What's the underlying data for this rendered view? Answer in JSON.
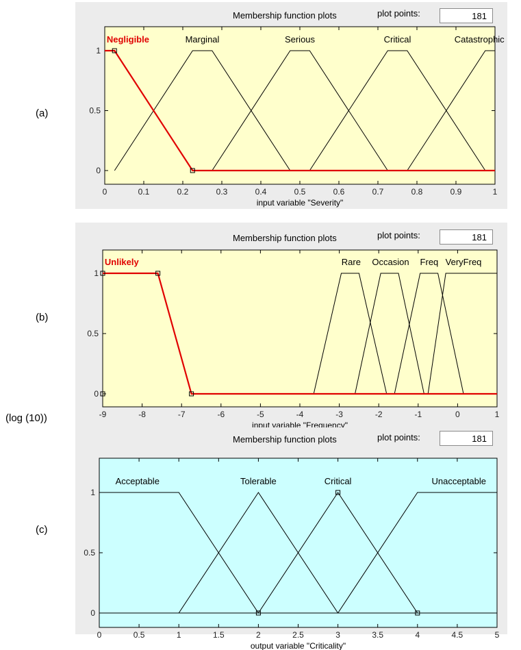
{
  "row_labels": {
    "a": "(a)",
    "b": "(b)",
    "c": "(c)",
    "log_note": "(log (10))"
  },
  "panel_header": {
    "title": "Membership function plots",
    "plot_points_label": "plot points:"
  },
  "colors": {
    "input_bg": "#ffffcc",
    "output_bg": "#ccffff",
    "selected": "#e00000",
    "line": "#000000"
  },
  "chart_data": [
    {
      "type": "line",
      "kind": "fuzzy-membership",
      "plot_points": "181",
      "xlabel": "input variable \"Severity\"",
      "xlim": [
        0,
        1
      ],
      "ylim": [
        0,
        1
      ],
      "xticks": [
        0,
        0.1,
        0.2,
        0.3,
        0.4,
        0.5,
        0.6,
        0.7,
        0.8,
        0.9,
        1
      ],
      "xtick_labels": [
        "0",
        "0.1",
        "0.2",
        "0.3",
        "0.4",
        "0.5",
        "0.6",
        "0.7",
        "0.8",
        "0.9",
        "1"
      ],
      "yticks": [
        0,
        0.5,
        1
      ],
      "ytick_labels": [
        "0",
        "0.5",
        "1"
      ],
      "background": "#ffffcc",
      "series": [
        {
          "name": "Negligible",
          "selected": true,
          "points": [
            [
              0,
              1
            ],
            [
              0.025,
              1
            ],
            [
              0.225,
              0
            ],
            [
              1,
              0
            ]
          ]
        },
        {
          "name": "Marginal",
          "points": [
            [
              0.025,
              0
            ],
            [
              0.225,
              1
            ],
            [
              0.275,
              1
            ],
            [
              0.475,
              0
            ]
          ]
        },
        {
          "name": "Serious",
          "points": [
            [
              0.275,
              0
            ],
            [
              0.475,
              1
            ],
            [
              0.525,
              1
            ],
            [
              0.725,
              0
            ]
          ]
        },
        {
          "name": "Critical",
          "points": [
            [
              0.525,
              0
            ],
            [
              0.725,
              1
            ],
            [
              0.775,
              1
            ],
            [
              0.975,
              0
            ]
          ]
        },
        {
          "name": "Catastrophic",
          "points": [
            [
              0.775,
              0
            ],
            [
              0.975,
              1
            ],
            [
              1,
              1
            ]
          ]
        }
      ],
      "labels": [
        {
          "text": "Negligible",
          "x": 0.005,
          "selected": true
        },
        {
          "text": "Marginal",
          "x": 0.25
        },
        {
          "text": "Serious",
          "x": 0.5
        },
        {
          "text": "Critical",
          "x": 0.75
        },
        {
          "text": "Catastrophic",
          "x": 0.96
        }
      ],
      "markers": [
        [
          0.025,
          1
        ],
        [
          0.225,
          0
        ]
      ]
    },
    {
      "type": "line",
      "kind": "fuzzy-membership",
      "plot_points": "181",
      "xlabel": "input variable \"Frequency\"",
      "xlim": [
        -9,
        1
      ],
      "ylim": [
        0,
        1
      ],
      "xticks": [
        -9,
        -8,
        -7,
        -6,
        -5,
        -4,
        -3,
        -2,
        -1,
        0,
        1
      ],
      "xtick_labels": [
        "-9",
        "-8",
        "-7",
        "-6",
        "-5",
        "-4",
        "-3",
        "-2",
        "-1",
        "0",
        "1"
      ],
      "yticks": [
        0,
        0.5,
        1
      ],
      "ytick_labels": [
        "0",
        "0.5",
        "1"
      ],
      "background": "#ffffcc",
      "series": [
        {
          "name": "Unlikely",
          "selected": true,
          "points": [
            [
              -9,
              1
            ],
            [
              -7.6,
              1
            ],
            [
              -6.75,
              0
            ],
            [
              1,
              0
            ]
          ]
        },
        {
          "name": "Rare",
          "points": [
            [
              -3.65,
              0
            ],
            [
              -2.95,
              1
            ],
            [
              -2.5,
              1
            ],
            [
              -1.8,
              0
            ]
          ]
        },
        {
          "name": "Occasion",
          "points": [
            [
              -2.6,
              0
            ],
            [
              -1.95,
              1
            ],
            [
              -1.5,
              1
            ],
            [
              -0.85,
              0
            ]
          ]
        },
        {
          "name": "Freq",
          "points": [
            [
              -1.6,
              0
            ],
            [
              -0.95,
              1
            ],
            [
              -0.5,
              1
            ],
            [
              0.15,
              0
            ]
          ]
        },
        {
          "name": "VeryFreq",
          "points": [
            [
              -0.75,
              0
            ],
            [
              -0.3,
              1
            ],
            [
              1,
              1
            ]
          ]
        }
      ],
      "labels": [
        {
          "text": "Unlikely",
          "x": -8.95,
          "selected": true
        },
        {
          "text": "Rare",
          "x": -2.7
        },
        {
          "text": "Occasion",
          "x": -1.7
        },
        {
          "text": "Freq",
          "x": -0.72
        },
        {
          "text": "VeryFreq",
          "x": 0.15
        }
      ],
      "markers": [
        [
          -9,
          1
        ],
        [
          -7.6,
          1
        ],
        [
          -6.75,
          0
        ],
        [
          -9,
          0
        ]
      ]
    },
    {
      "type": "line",
      "kind": "fuzzy-membership",
      "plot_points": "181",
      "xlabel": "output variable \"Criticality\"",
      "xlim": [
        0,
        5
      ],
      "ylim": [
        0,
        1
      ],
      "xticks": [
        0,
        0.5,
        1,
        1.5,
        2,
        2.5,
        3,
        3.5,
        4,
        4.5,
        5
      ],
      "xtick_labels": [
        "0",
        "0.5",
        "1",
        "1.5",
        "2",
        "2.5",
        "3",
        "3.5",
        "4",
        "4.5",
        "5"
      ],
      "yticks": [
        0,
        0.5,
        1
      ],
      "ytick_labels": [
        "0",
        "0.5",
        "1"
      ],
      "background": "#ccffff",
      "series": [
        {
          "name": "Acceptable",
          "points": [
            [
              0,
              1
            ],
            [
              1,
              1
            ],
            [
              2,
              0
            ],
            [
              5,
              0
            ]
          ]
        },
        {
          "name": "Tolerable",
          "points": [
            [
              1,
              0
            ],
            [
              2,
              1
            ],
            [
              3,
              0
            ]
          ]
        },
        {
          "name": "Critical",
          "points": [
            [
              2,
              0
            ],
            [
              3,
              1
            ],
            [
              4,
              0
            ]
          ]
        },
        {
          "name": "Unacceptable",
          "points": [
            [
              0,
              0
            ],
            [
              3,
              0
            ],
            [
              4,
              1
            ],
            [
              5,
              1
            ]
          ]
        }
      ],
      "labels": [
        {
          "text": "Acceptable",
          "x": 0.48
        },
        {
          "text": "Tolerable",
          "x": 2.0
        },
        {
          "text": "Critical",
          "x": 3.0
        },
        {
          "text": "Unacceptable",
          "x": 4.52
        }
      ],
      "markers": [
        [
          2,
          0
        ],
        [
          3,
          1
        ],
        [
          4,
          0
        ]
      ]
    }
  ]
}
